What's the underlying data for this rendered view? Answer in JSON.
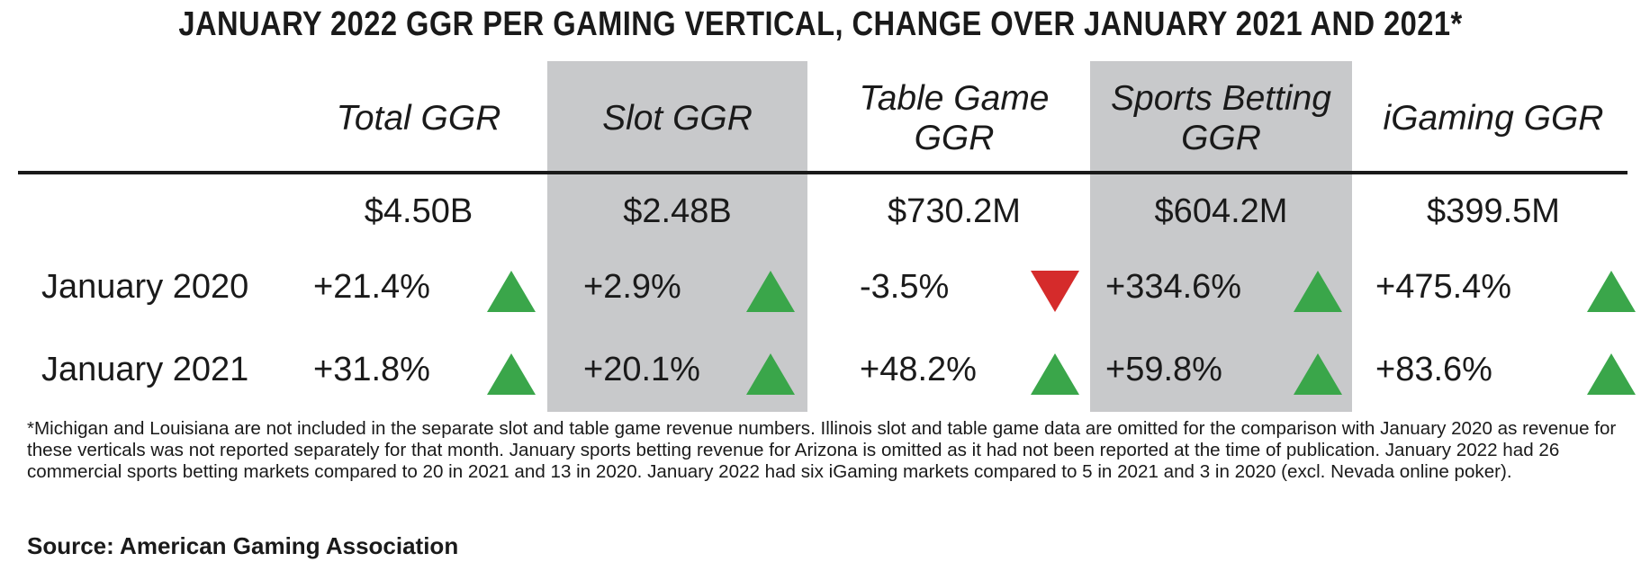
{
  "chart_data": {
    "type": "table",
    "title": "JANUARY 2022 GGR PER GAMING VERTICAL, CHANGE OVER JANUARY 2021 AND 2021*",
    "columns": [
      "Total GGR",
      "Slot GGR",
      "Table Game GGR",
      "Sports Betting GGR",
      "iGaming GGR"
    ],
    "totals": [
      "$4.50B",
      "$2.48B",
      "$730.2M",
      "$604.2M",
      "$399.5M"
    ],
    "rows": [
      {
        "label": "January 2020",
        "values": [
          "+21.4%",
          "+2.9%",
          "-3.5%",
          "+334.6%",
          "+475.4%"
        ],
        "directions": [
          "up",
          "up",
          "down",
          "up",
          "up"
        ]
      },
      {
        "label": "January 2021",
        "values": [
          "+31.8%",
          "+20.1%",
          "+48.2%",
          "+59.8%",
          "+83.6%"
        ],
        "directions": [
          "up",
          "up",
          "up",
          "up",
          "up"
        ]
      }
    ],
    "shaded_columns": [
      "Slot GGR",
      "Sports Betting GGR"
    ],
    "footnote": "*Michigan and Louisiana are not included in the separate slot and table game revenue numbers. Illinois slot and table game data are omitted for the comparison with January 2020 as revenue for these verticals was not reported separately for that month. January sports betting revenue for Arizona is omitted as it had not been reported at the time of publication. January 2022 had 26 commercial sports betting markets compared to 20 in 2021 and 13 in 2020. January 2022 had six iGaming markets compared to 5 in 2021 and 3 in 2020 (excl. Nevada online poker).",
    "source": "Source: American Gaming Association",
    "colors": {
      "up": "#3aa64a",
      "down": "#d52b2b",
      "shade": "#c8c9cb"
    }
  }
}
